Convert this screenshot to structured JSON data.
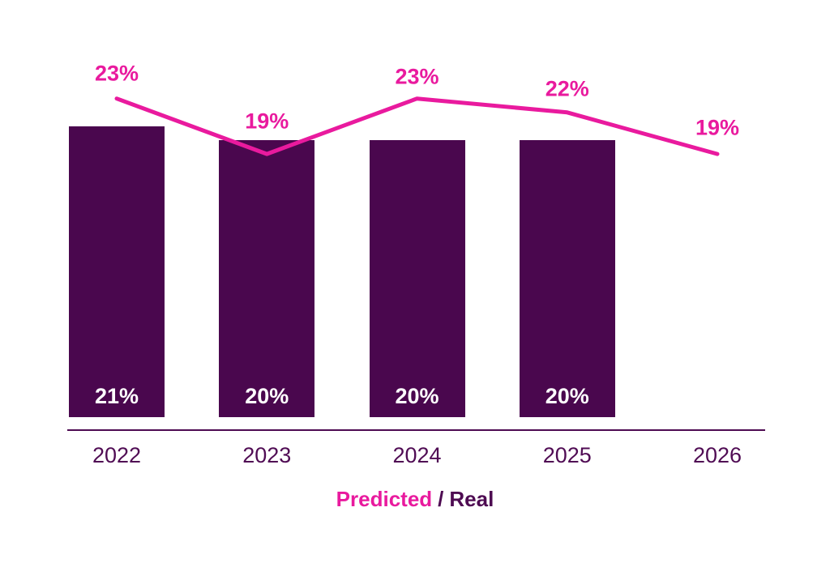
{
  "chart_data": {
    "type": "bar",
    "subtype": "bar-with-line-overlay",
    "categories": [
      "2022",
      "2023",
      "2024",
      "2025",
      "2026"
    ],
    "series": [
      {
        "name": "Real",
        "type": "bar",
        "color": "#4A074E",
        "values": [
          21,
          20,
          20,
          20,
          null
        ],
        "labels": [
          "21%",
          "20%",
          "20%",
          "20%",
          ""
        ],
        "label_color": "#FFFFFF"
      },
      {
        "name": "Predicted",
        "type": "line",
        "color": "#E91A9E",
        "values": [
          23,
          19,
          23,
          22,
          19
        ],
        "labels": [
          "23%",
          "19%",
          "23%",
          "22%",
          "19%"
        ],
        "label_color": "#E91A9E"
      }
    ],
    "title": "",
    "xlabel": "",
    "ylabel": "",
    "grid": false,
    "y_axis_visible": false,
    "legend_position": "bottom-center"
  },
  "legend": {
    "predicted_label": "Predicted",
    "separator": "/",
    "real_label": "Real"
  },
  "colors": {
    "background": "#FFFFFF",
    "bar": "#4A074E",
    "line": "#E91A9E",
    "axis_line": "#4E0B52",
    "axis_text": "#500C54",
    "bar_label_text": "#FFFFFF",
    "legend_predicted": "#E91A9E",
    "legend_real": "#4E0B52"
  }
}
